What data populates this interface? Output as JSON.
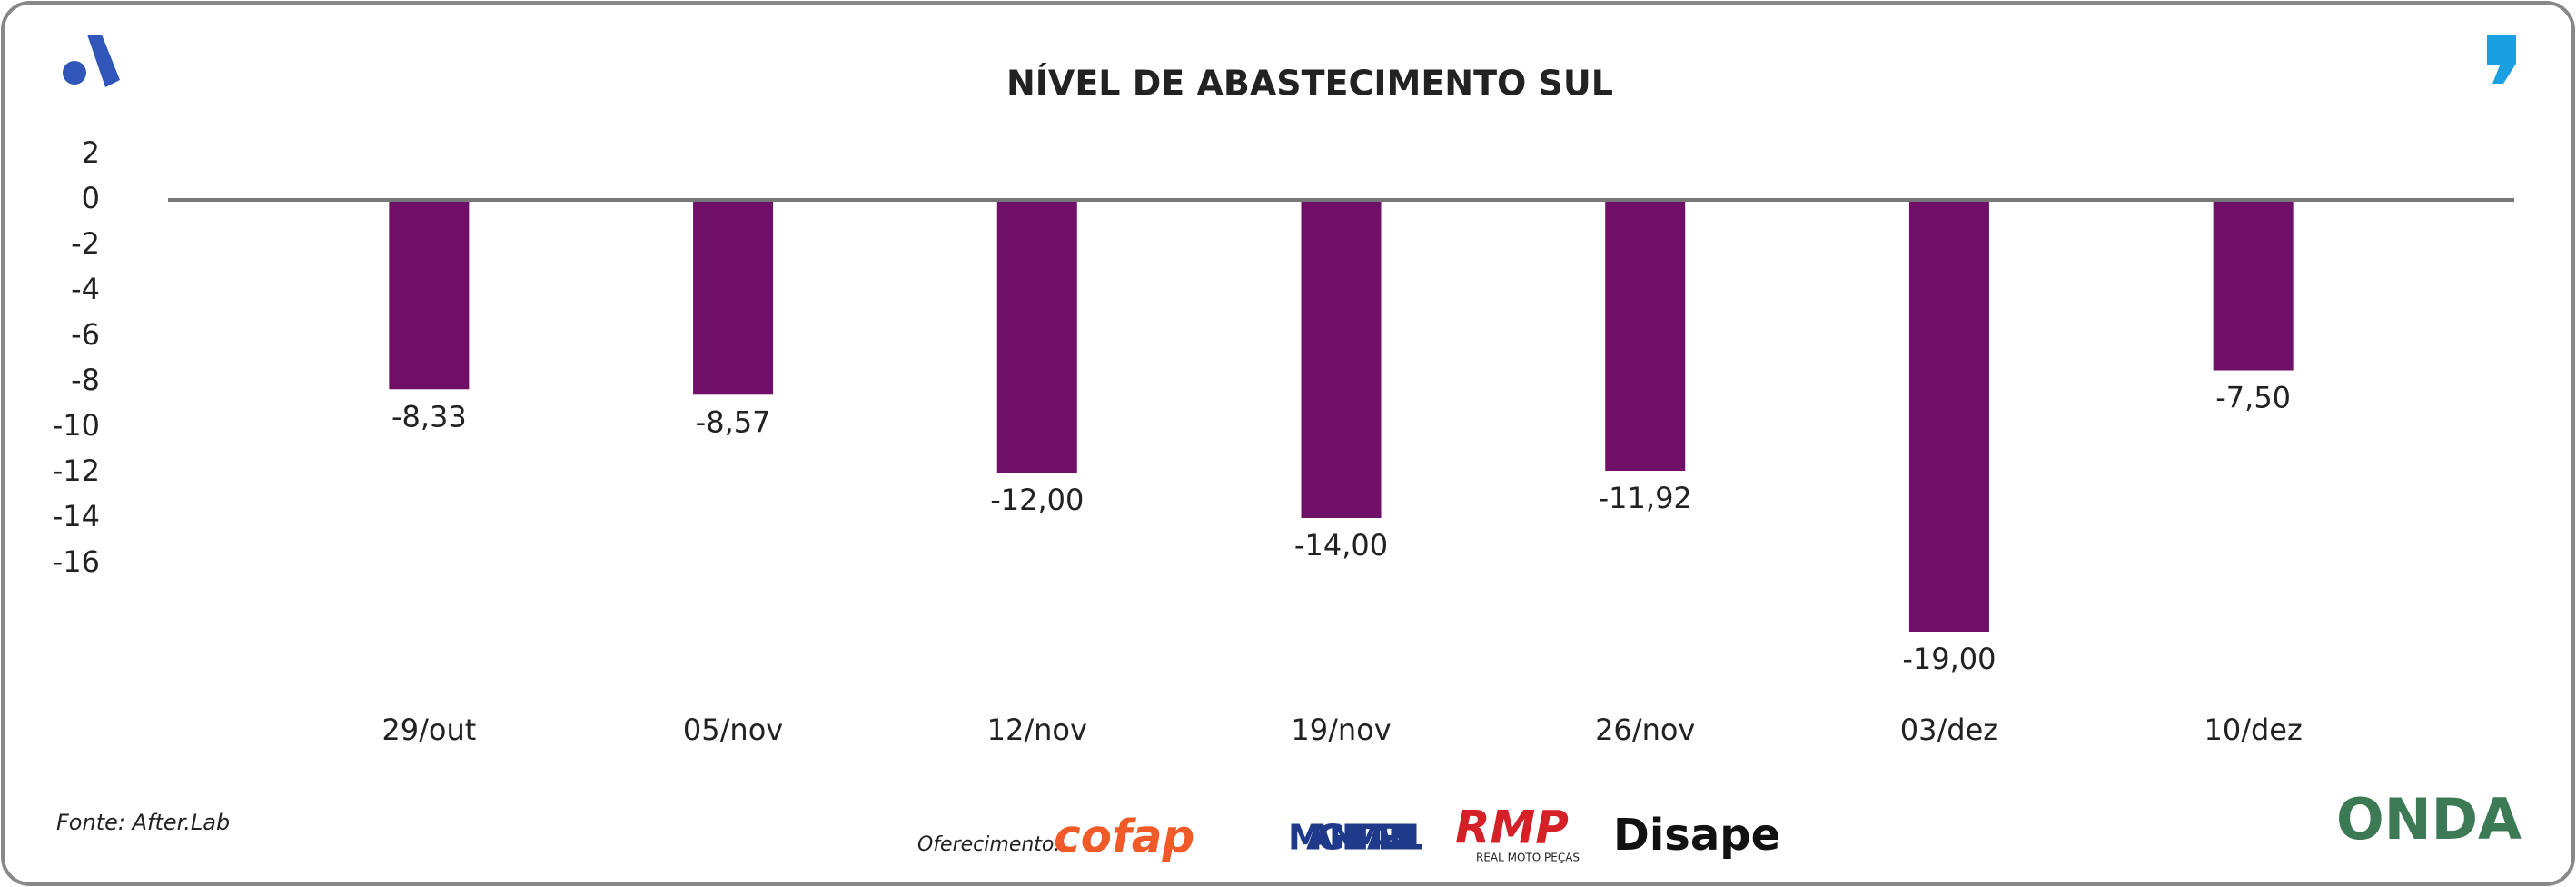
{
  "chart_data": {
    "type": "bar",
    "title": "NÍVEL DE ABASTECIMENTO SUL",
    "categories": [
      "29/out",
      "05/nov",
      "12/nov",
      "19/nov",
      "26/nov",
      "03/dez",
      "10/dez"
    ],
    "values": [
      -8.33,
      -8.57,
      -12.0,
      -14.0,
      -11.92,
      -19.0,
      -7.5
    ],
    "value_labels": [
      "-8,33",
      "-8,57",
      "-12,00",
      "-14,00",
      "-11,92",
      "-19,00",
      "-7,50"
    ],
    "color": "#700f68",
    "ylim": [
      -16,
      2
    ],
    "yticks": [
      2,
      0,
      -2,
      -4,
      -6,
      -8,
      -10,
      -12,
      -14,
      -16
    ],
    "grid": false
  },
  "footer": {
    "source": "Fonte: After.Lab",
    "sponsor_label": "Oferecimento:",
    "sponsors": [
      "cofap",
      "MAGNETI MARELLI",
      "RMP",
      "Disape"
    ],
    "rmp_tagline": "REAL MOTO PEÇAS",
    "brand": "ONDA"
  }
}
